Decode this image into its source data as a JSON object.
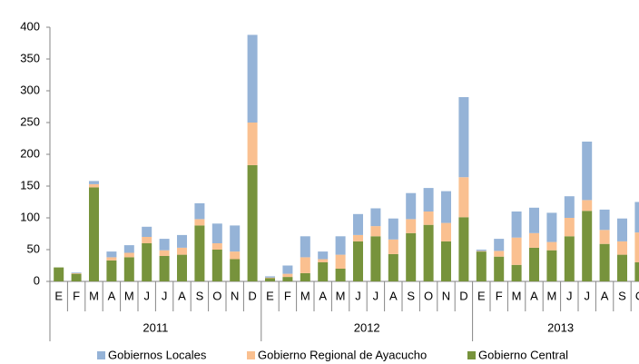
{
  "chart_data": {
    "type": "stacked_bar",
    "categories": [
      "E",
      "F",
      "M",
      "A",
      "M",
      "J",
      "J",
      "A",
      "S",
      "O",
      "N",
      "D",
      "E",
      "F",
      "M",
      "A",
      "M",
      "J",
      "J",
      "A",
      "S",
      "O",
      "N",
      "D",
      "E",
      "F",
      "M",
      "A",
      "M",
      "J",
      "J",
      "A",
      "S",
      "O"
    ],
    "groups": [
      "2011",
      "2012",
      "2013"
    ],
    "series": [
      {
        "name": "Gobiernos Locales",
        "color": "#95b3d7",
        "values": [
          0,
          1,
          5,
          9,
          12,
          16,
          18,
          20,
          25,
          31,
          41,
          138,
          2,
          13,
          33,
          12,
          29,
          33,
          28,
          33,
          41,
          37,
          50,
          126,
          2,
          19,
          41,
          40,
          46,
          34,
          92,
          32,
          36,
          48
        ]
      },
      {
        "name": "Gobierno Regional de Ayacucho",
        "color": "#fac090",
        "values": [
          0,
          1,
          5,
          5,
          7,
          10,
          9,
          11,
          10,
          10,
          12,
          67,
          1,
          5,
          25,
          5,
          22,
          10,
          16,
          23,
          22,
          21,
          29,
          63,
          1,
          9,
          43,
          23,
          13,
          29,
          17,
          22,
          21,
          47
        ]
      },
      {
        "name": "Gobierno Central",
        "color": "#77933c",
        "values": [
          22,
          12,
          148,
          33,
          38,
          60,
          40,
          42,
          88,
          50,
          35,
          183,
          5,
          7,
          13,
          30,
          20,
          63,
          71,
          43,
          76,
          89,
          63,
          101,
          47,
          39,
          26,
          53,
          49,
          71,
          111,
          59,
          42,
          30
        ]
      }
    ],
    "ylim": [
      0,
      400
    ],
    "yticks": [
      0,
      50,
      100,
      150,
      200,
      250,
      300,
      350,
      400
    ],
    "grid": false,
    "legend": "bottom"
  }
}
